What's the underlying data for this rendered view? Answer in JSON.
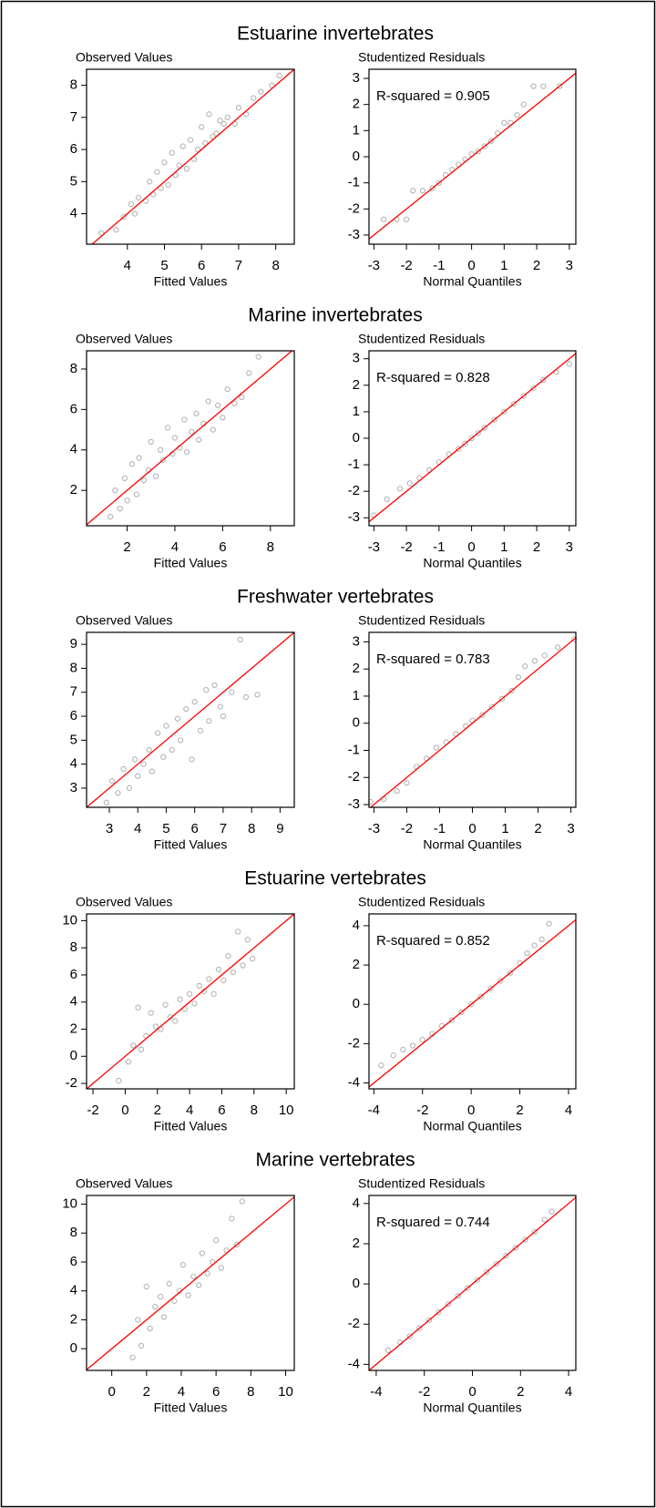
{
  "chart_data": [
    {
      "type": "scatter",
      "title": "Estuarine invertebrates",
      "ylabel": "Observed Values",
      "xlabel": "Fitted Values",
      "xlim": [
        2.9,
        8.5
      ],
      "ylim": [
        3.05,
        8.5
      ],
      "xticks": [
        4,
        5,
        6,
        7,
        8
      ],
      "yticks": [
        4,
        5,
        6,
        7,
        8
      ],
      "point_color": "#b4b4b4",
      "line_color": "#ff0000",
      "reference_line": {
        "slope": 1,
        "intercept": 0
      },
      "x": [
        3.3,
        3.7,
        3.9,
        4.1,
        4.2,
        4.3,
        4.5,
        4.6,
        4.7,
        4.8,
        4.9,
        5.0,
        5.1,
        5.2,
        5.3,
        5.4,
        5.5,
        5.6,
        5.7,
        5.8,
        5.9,
        6.0,
        6.1,
        6.2,
        6.3,
        6.4,
        6.5,
        6.6,
        6.7,
        6.9,
        7.0,
        7.2,
        7.4,
        7.6,
        7.9,
        8.1
      ],
      "y": [
        3.4,
        3.5,
        3.9,
        4.3,
        4.0,
        4.5,
        4.4,
        5.0,
        4.6,
        5.3,
        4.8,
        5.6,
        4.9,
        5.9,
        5.2,
        5.5,
        6.1,
        5.4,
        6.3,
        5.7,
        6.0,
        6.7,
        6.2,
        7.1,
        6.4,
        6.5,
        6.9,
        6.8,
        7.0,
        6.8,
        7.3,
        7.1,
        7.6,
        7.8,
        8.0,
        8.3
      ]
    },
    {
      "type": "scatter",
      "ylabel": "Studentized Residuals",
      "xlabel": "Normal Quantiles",
      "annotation": "R-squared = 0.905",
      "xlim": [
        -3.15,
        3.2
      ],
      "ylim": [
        -3.35,
        3.35
      ],
      "xticks": [
        -3,
        -2,
        -1,
        0,
        1,
        2,
        3
      ],
      "yticks": [
        -3,
        -2,
        -1,
        0,
        1,
        2,
        3
      ],
      "point_color": "#b4b4b4",
      "line_color": "#ff0000",
      "reference_line": {
        "slope": 1,
        "intercept": 0
      },
      "x": [
        -2.7,
        -2.3,
        -2.0,
        -1.8,
        -1.5,
        -1.2,
        -1.0,
        -0.8,
        -0.6,
        -0.4,
        -0.2,
        0,
        0.2,
        0.4,
        0.6,
        0.8,
        1.0,
        1.2,
        1.4,
        1.6,
        1.9,
        2.2,
        2.7
      ],
      "y": [
        -2.4,
        -2.4,
        -2.4,
        -1.3,
        -1.3,
        -1.2,
        -1.0,
        -0.7,
        -0.5,
        -0.3,
        -0.1,
        0.1,
        0.2,
        0.4,
        0.6,
        0.9,
        1.3,
        1.3,
        1.6,
        2.0,
        2.7,
        2.7,
        2.7
      ]
    },
    {
      "type": "scatter",
      "title": "Marine invertebrates",
      "ylabel": "Observed Values",
      "xlabel": "Fitted Values",
      "xlim": [
        0.3,
        9
      ],
      "ylim": [
        0.25,
        8.9
      ],
      "xticks": [
        2,
        4,
        6,
        8
      ],
      "yticks": [
        2,
        4,
        6,
        8
      ],
      "point_color": "#b4b4b4",
      "line_color": "#ff0000",
      "reference_line": {
        "slope": 1,
        "intercept": 0
      },
      "x": [
        1.3,
        1.5,
        1.7,
        1.9,
        2.0,
        2.2,
        2.4,
        2.5,
        2.7,
        2.9,
        3.0,
        3.2,
        3.4,
        3.5,
        3.7,
        3.9,
        4.0,
        4.2,
        4.4,
        4.5,
        4.7,
        4.9,
        5.0,
        5.2,
        5.4,
        5.6,
        5.8,
        6.0,
        6.2,
        6.5,
        6.8,
        7.1,
        7.5
      ],
      "y": [
        0.7,
        2.0,
        1.1,
        2.6,
        1.5,
        3.3,
        1.8,
        3.6,
        2.5,
        3.0,
        4.4,
        2.7,
        4.0,
        3.5,
        5.1,
        3.8,
        4.6,
        4.1,
        5.5,
        3.9,
        4.9,
        5.8,
        4.5,
        5.3,
        6.4,
        5.0,
        6.2,
        5.6,
        7.0,
        6.3,
        6.6,
        7.8,
        8.6
      ]
    },
    {
      "type": "scatter",
      "ylabel": "Studentized Residuals",
      "xlabel": "Normal Quantiles",
      "annotation": "R-squared = 0.828",
      "xlim": [
        -3.15,
        3.2
      ],
      "ylim": [
        -3.3,
        3.3
      ],
      "xticks": [
        -3,
        -2,
        -1,
        0,
        1,
        2,
        3
      ],
      "yticks": [
        -3,
        -2,
        -1,
        0,
        1,
        2,
        3
      ],
      "point_color": "#b4b4b4",
      "line_color": "#ff0000",
      "reference_line": {
        "slope": 1,
        "intercept": 0
      },
      "x": [
        -3.0,
        -2.6,
        -2.2,
        -1.9,
        -1.6,
        -1.3,
        -1.0,
        -0.7,
        -0.4,
        -0.2,
        0,
        0.2,
        0.4,
        0.7,
        1.0,
        1.3,
        1.6,
        1.9,
        2.2,
        2.6,
        3.0
      ],
      "y": [
        -2.9,
        -2.3,
        -1.9,
        -1.7,
        -1.5,
        -1.2,
        -0.9,
        -0.6,
        -0.4,
        -0.2,
        0,
        0.2,
        0.4,
        0.7,
        1.0,
        1.3,
        1.6,
        1.9,
        2.2,
        2.5,
        2.8
      ]
    },
    {
      "type": "scatter",
      "title": "Freshwater vertebrates",
      "ylabel": "Observed Values",
      "xlabel": "Fitted Values",
      "xlim": [
        2.2,
        9.5
      ],
      "ylim": [
        2.2,
        9.5
      ],
      "xticks": [
        3,
        4,
        5,
        6,
        7,
        8,
        9
      ],
      "yticks": [
        3,
        4,
        5,
        6,
        7,
        8,
        9
      ],
      "point_color": "#b4b4b4",
      "line_color": "#ff0000",
      "reference_line": {
        "slope": 1,
        "intercept": 0
      },
      "x": [
        2.9,
        3.1,
        3.3,
        3.5,
        3.7,
        3.9,
        4.0,
        4.2,
        4.4,
        4.5,
        4.7,
        4.9,
        5.0,
        5.2,
        5.4,
        5.5,
        5.7,
        5.9,
        6.0,
        6.2,
        6.4,
        6.5,
        6.7,
        6.9,
        7.0,
        7.3,
        7.6,
        7.8,
        8.2
      ],
      "y": [
        2.4,
        3.3,
        2.8,
        3.8,
        3.0,
        4.2,
        3.5,
        4.0,
        4.6,
        3.7,
        5.3,
        4.3,
        5.6,
        4.6,
        5.9,
        5.0,
        6.3,
        4.2,
        6.6,
        5.4,
        7.1,
        5.8,
        7.3,
        6.4,
        6.0,
        7.0,
        9.2,
        6.8,
        6.9
      ]
    },
    {
      "type": "scatter",
      "ylabel": "Studentized Residuals",
      "xlabel": "Normal Quantiles",
      "annotation": "R-squared = 0.783",
      "xlim": [
        -3.15,
        3.15
      ],
      "ylim": [
        -3.1,
        3.35
      ],
      "xticks": [
        -3,
        -2,
        -1,
        0,
        1,
        2,
        3
      ],
      "yticks": [
        -3,
        -2,
        -1,
        0,
        1,
        2,
        3
      ],
      "point_color": "#b4b4b4",
      "line_color": "#ff0000",
      "reference_line": {
        "slope": 1,
        "intercept": 0
      },
      "x": [
        -3.1,
        -2.7,
        -2.3,
        -2.0,
        -1.7,
        -1.4,
        -1.1,
        -0.8,
        -0.5,
        -0.2,
        0,
        0.3,
        0.6,
        0.9,
        1.2,
        1.4,
        1.6,
        1.9,
        2.2,
        2.6,
        3.1
      ],
      "y": [
        -2.9,
        -2.8,
        -2.5,
        -2.2,
        -1.6,
        -1.3,
        -0.9,
        -0.7,
        -0.4,
        -0.1,
        0.1,
        0.3,
        0.6,
        0.9,
        1.2,
        1.7,
        2.1,
        2.3,
        2.5,
        2.8,
        3.1
      ]
    },
    {
      "type": "scatter",
      "title": "Estuarine vertebrates",
      "ylabel": "Observed Values",
      "xlabel": "Fitted Values",
      "xlim": [
        -2.4,
        10.5
      ],
      "ylim": [
        -2.4,
        10.5
      ],
      "xticks": [
        -2,
        0,
        2,
        4,
        6,
        8,
        10
      ],
      "yticks": [
        -2,
        0,
        2,
        4,
        6,
        8,
        10
      ],
      "point_color": "#b4b4b4",
      "line_color": "#ff0000",
      "reference_line": {
        "slope": 1,
        "intercept": 0
      },
      "x": [
        -0.4,
        0.2,
        0.5,
        0.8,
        1.0,
        1.3,
        1.6,
        1.9,
        2.2,
        2.5,
        2.8,
        3.1,
        3.4,
        3.7,
        4.0,
        4.3,
        4.6,
        4.9,
        5.2,
        5.5,
        5.8,
        6.1,
        6.4,
        6.7,
        7.0,
        7.3,
        7.6,
        7.9
      ],
      "y": [
        -1.8,
        -0.4,
        0.8,
        3.6,
        0.5,
        1.5,
        3.2,
        2.2,
        2.0,
        3.8,
        2.9,
        2.6,
        4.2,
        3.5,
        4.6,
        3.9,
        5.2,
        4.8,
        5.7,
        4.6,
        6.4,
        5.6,
        7.4,
        6.2,
        9.2,
        6.7,
        8.6,
        7.2
      ]
    },
    {
      "type": "scatter",
      "ylabel": "Studentized Residuals",
      "xlabel": "Normal Quantiles",
      "annotation": "R-squared = 0.852",
      "xlim": [
        -4.2,
        4.3
      ],
      "ylim": [
        -4.3,
        4.6
      ],
      "xticks": [
        -4,
        -2,
        0,
        2,
        4
      ],
      "yticks": [
        -4,
        -2,
        0,
        2,
        4
      ],
      "point_color": "#b4b4b4",
      "line_color": "#ff0000",
      "reference_line": {
        "slope": 1,
        "intercept": 0
      },
      "x": [
        -3.7,
        -3.2,
        -2.8,
        -2.4,
        -2.0,
        -1.6,
        -1.2,
        -0.8,
        -0.4,
        0,
        0.4,
        0.8,
        1.2,
        1.6,
        2.0,
        2.3,
        2.6,
        2.9,
        3.2
      ],
      "y": [
        -3.1,
        -2.6,
        -2.3,
        -2.1,
        -1.8,
        -1.5,
        -1.1,
        -0.8,
        -0.4,
        0,
        0.4,
        0.8,
        1.2,
        1.6,
        2.1,
        2.6,
        3.0,
        3.3,
        4.1
      ]
    },
    {
      "type": "scatter",
      "title": "Marine vertebrates",
      "ylabel": "Observed Values",
      "xlabel": "Fitted Values",
      "xlim": [
        -1.45,
        10.5
      ],
      "ylim": [
        -1.5,
        10.6
      ],
      "xticks": [
        0,
        2,
        4,
        6,
        8,
        10
      ],
      "yticks": [
        0,
        2,
        4,
        6,
        8,
        10
      ],
      "point_color": "#b4b4b4",
      "line_color": "#ff0000",
      "reference_line": {
        "slope": 1,
        "intercept": 0
      },
      "x": [
        1.2,
        1.5,
        1.7,
        2.0,
        2.2,
        2.5,
        2.8,
        3.0,
        3.3,
        3.6,
        3.9,
        4.1,
        4.4,
        4.7,
        5.0,
        5.2,
        5.5,
        5.8,
        6.0,
        6.3,
        6.6,
        6.9,
        7.2,
        7.5
      ],
      "y": [
        -0.6,
        2.0,
        0.2,
        4.3,
        1.4,
        2.9,
        3.6,
        2.2,
        4.5,
        3.3,
        4.0,
        5.8,
        3.7,
        5.0,
        4.4,
        6.6,
        5.2,
        6.0,
        7.5,
        5.6,
        6.8,
        9.0,
        7.2,
        10.2
      ]
    },
    {
      "type": "scatter",
      "ylabel": "Studentized Residuals",
      "xlabel": "Normal Quantiles",
      "annotation": "R-squared = 0.744",
      "xlim": [
        -4.3,
        4.3
      ],
      "ylim": [
        -4.3,
        4.4
      ],
      "xticks": [
        -4,
        -2,
        0,
        2,
        4
      ],
      "yticks": [
        -4,
        -2,
        0,
        2,
        4
      ],
      "point_color": "#b4b4b4",
      "line_color": "#ff0000",
      "reference_line": {
        "slope": 1,
        "intercept": 0
      },
      "x": [
        -3.5,
        -3.0,
        -2.6,
        -2.2,
        -1.8,
        -1.4,
        -1.0,
        -0.6,
        -0.2,
        0.2,
        0.6,
        1.0,
        1.4,
        1.8,
        2.2,
        2.6,
        3.0,
        3.3
      ],
      "y": [
        -3.3,
        -2.9,
        -2.6,
        -2.2,
        -1.8,
        -1.4,
        -1.0,
        -0.6,
        -0.2,
        0.2,
        0.6,
        1.0,
        1.4,
        1.8,
        2.2,
        2.6,
        3.2,
        3.6
      ]
    }
  ]
}
